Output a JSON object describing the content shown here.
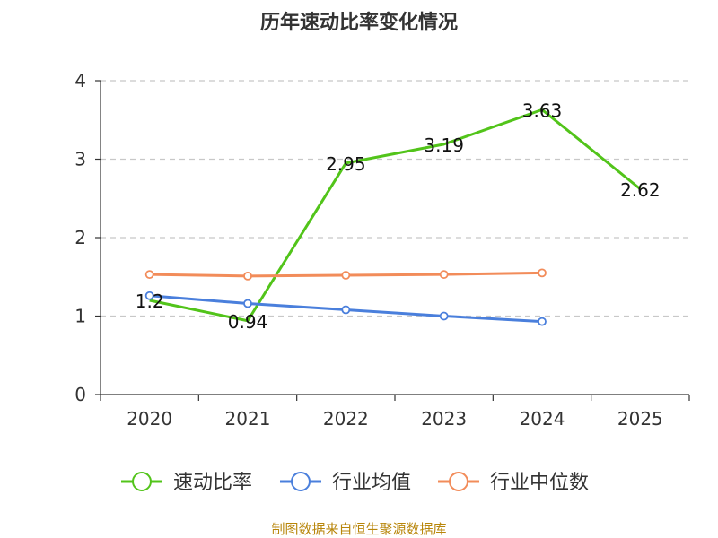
{
  "chart_data": {
    "type": "line",
    "title": "历年速动比率变化情况",
    "categories": [
      "2020",
      "2021",
      "2022",
      "2023",
      "2024",
      "2025"
    ],
    "ylim": [
      0,
      4
    ],
    "yticks": [
      0,
      1,
      2,
      3,
      4
    ],
    "grid": true,
    "legend_position": "bottom",
    "series": [
      {
        "name": "速动比率",
        "color": "#52c41a",
        "values": [
          1.2,
          0.94,
          2.95,
          3.19,
          3.63,
          2.62
        ],
        "labels": [
          "1.2",
          "0.94",
          "2.95",
          "3.19",
          "3.63",
          "2.62"
        ],
        "markers": false
      },
      {
        "name": "行业均值",
        "color": "#4a7fdc",
        "values": [
          1.26,
          1.16,
          1.08,
          1.0,
          0.93,
          null
        ],
        "markers": true
      },
      {
        "name": "行业中位数",
        "color": "#f28c5a",
        "values": [
          1.53,
          1.51,
          1.52,
          1.53,
          1.55,
          null
        ],
        "markers": true
      }
    ],
    "source": "制图数据来自恒生聚源数据库"
  }
}
